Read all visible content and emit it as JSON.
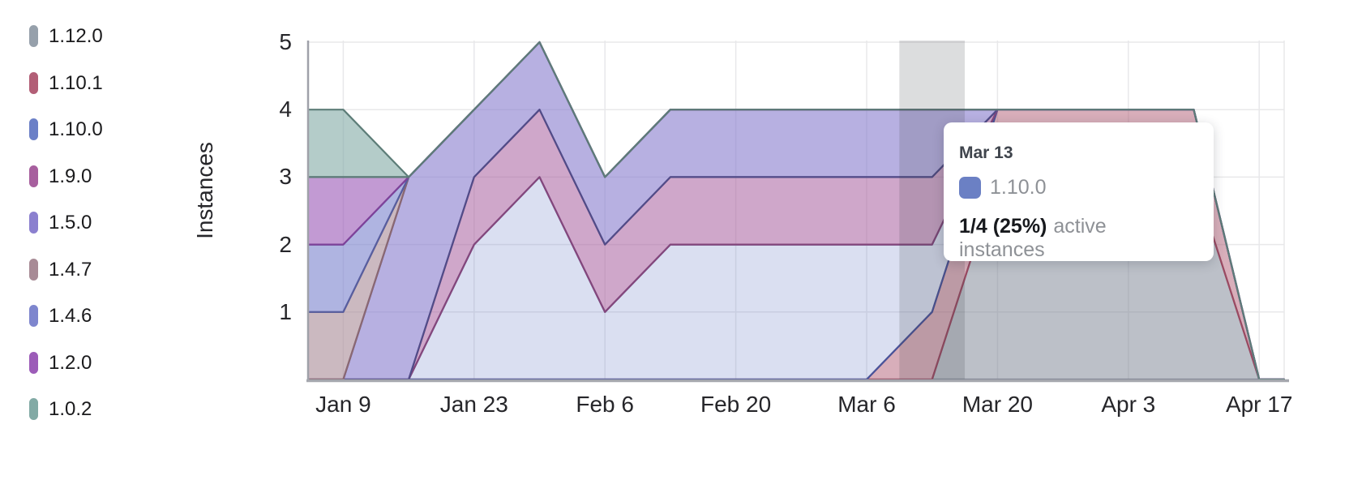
{
  "chart_data": {
    "type": "area",
    "stacked": true,
    "ylabel": "Instances",
    "ylim": [
      0,
      5
    ],
    "y_ticks": [
      1,
      2,
      3,
      4,
      5
    ],
    "grid": true,
    "legend_position": "left",
    "dates": [
      "Jan 2",
      "Jan 9",
      "Jan 16",
      "Jan 23",
      "Jan 30",
      "Feb 6",
      "Feb 13",
      "Feb 20",
      "Feb 27",
      "Mar 6",
      "Mar 13",
      "Mar 20",
      "Mar 27",
      "Apr 3",
      "Apr 10",
      "Apr 17"
    ],
    "x_tick_labels": [
      "Jan 9",
      "Jan 23",
      "Feb 6",
      "Feb 20",
      "Mar 6",
      "Mar 20",
      "Apr 3",
      "Apr 17"
    ],
    "highlighted_date": "Mar 13",
    "series": [
      {
        "name": "1.12.0",
        "legend_color": "#96a0ab",
        "fill": "rgba(121,129,145,0.50)",
        "stroke": "#7b8090",
        "values": [
          0,
          0,
          0,
          0,
          0,
          0,
          0,
          0,
          0,
          0,
          0,
          3,
          3,
          3,
          3,
          0
        ]
      },
      {
        "name": "1.10.1",
        "legend_color": "#b25e76",
        "fill": "rgba(178,94,118,0.50)",
        "stroke": "#9b4a62",
        "values": [
          0,
          0,
          0,
          0,
          0,
          0,
          0,
          0,
          0,
          0,
          1,
          1,
          1,
          1,
          1,
          0
        ]
      },
      {
        "name": "1.10.0",
        "legend_color": "#6b80c7",
        "fill": "rgba(107,128,199,0.25)",
        "stroke": "#48549b",
        "values": [
          0,
          0,
          0,
          2,
          3,
          1,
          2,
          2,
          2,
          2,
          1,
          0,
          0,
          0,
          0,
          0
        ]
      },
      {
        "name": "1.9.0",
        "legend_color": "#a75f9e",
        "fill": "rgba(167,95,158,0.55)",
        "stroke": "#84477c",
        "values": [
          0,
          0,
          0,
          1,
          1,
          1,
          1,
          1,
          1,
          1,
          1,
          0,
          0,
          0,
          0,
          0
        ]
      },
      {
        "name": "1.5.0",
        "legend_color": "#8b80cf",
        "fill": "rgba(139,128,207,0.62)",
        "stroke": "#514c88",
        "values": [
          0,
          0,
          3,
          1,
          1,
          1,
          1,
          1,
          1,
          1,
          1,
          0,
          0,
          0,
          0,
          0
        ]
      },
      {
        "name": "1.4.7",
        "legend_color": "#a88b96",
        "fill": "rgba(168,139,150,0.60)",
        "stroke": "#8a6873",
        "values": [
          1,
          1,
          0,
          0,
          0,
          0,
          0,
          0,
          0,
          0,
          0,
          0,
          0,
          0,
          0,
          0
        ]
      },
      {
        "name": "1.4.6",
        "legend_color": "#7e86ce",
        "fill": "rgba(126,134,206,0.62)",
        "stroke": "#575e9f",
        "values": [
          1,
          1,
          0,
          0,
          0,
          0,
          0,
          0,
          0,
          0,
          0,
          0,
          0,
          0,
          0,
          0
        ]
      },
      {
        "name": "1.2.0",
        "legend_color": "#9c5cb8",
        "fill": "rgba(156,92,184,0.62)",
        "stroke": "#7e4299",
        "values": [
          1,
          1,
          0,
          0,
          0,
          0,
          0,
          0,
          0,
          0,
          0,
          0,
          0,
          0,
          0,
          0
        ]
      },
      {
        "name": "1.0.2",
        "legend_color": "#82aaa5",
        "fill": "rgba(130,170,165,0.60)",
        "stroke": "#5d7d78",
        "values": [
          1,
          1,
          0,
          0,
          0,
          0,
          0,
          0,
          0,
          0,
          0,
          0,
          0,
          0,
          0,
          0
        ]
      }
    ]
  },
  "tooltip": {
    "date": "Mar 13",
    "series": "1.10.0",
    "swatch_color": "#6b80c4",
    "value": "1/4 (25%)",
    "suffix": "active instances"
  },
  "colors": {
    "grid": "#e8e8ea",
    "axis_border": "#9fa1a9",
    "baseline": "#a5a7ae",
    "highlight_band": "rgba(60,64,74,0.18)"
  }
}
